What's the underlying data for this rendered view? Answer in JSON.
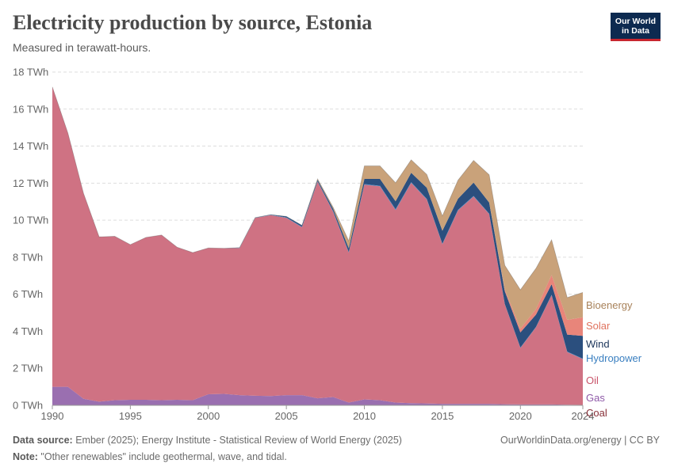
{
  "header": {
    "title": "Electricity production by source, Estonia",
    "subtitle": "Measured in terawatt-hours."
  },
  "logo": {
    "line1": "Our World",
    "line2": "in Data"
  },
  "footer": {
    "source_label": "Data source:",
    "source_text": " Ember (2025); Energy Institute - Statistical Review of World Energy (2025)",
    "note_label": "Note:",
    "note_text": " \"Other renewables\" include geothermal, wave, and tidal.",
    "credit": "OurWorldinData.org/energy | CC BY"
  },
  "chart_data": {
    "type": "area",
    "stacked": true,
    "title": "Electricity production by source, Estonia",
    "subtitle": "Measured in terawatt-hours.",
    "x": [
      1990,
      1991,
      1992,
      1993,
      1994,
      1995,
      1996,
      1997,
      1998,
      1999,
      2000,
      2001,
      2002,
      2003,
      2004,
      2005,
      2006,
      2007,
      2008,
      2009,
      2010,
      2011,
      2012,
      2013,
      2014,
      2015,
      2016,
      2017,
      2018,
      2019,
      2020,
      2021,
      2022,
      2023,
      2024
    ],
    "x_ticks": [
      1990,
      1995,
      2000,
      2005,
      2010,
      2015,
      2020,
      2024
    ],
    "x_tick_labels": [
      "1990",
      "1995",
      "2000",
      "2005",
      "2010",
      "2015",
      "2020",
      "2024"
    ],
    "xlim": [
      1990,
      2024
    ],
    "ylim": [
      0,
      18
    ],
    "y_ticks": [
      0,
      2,
      4,
      6,
      8,
      10,
      12,
      14,
      16,
      18
    ],
    "y_tick_labels": [
      "0 TWh",
      "2 TWh",
      "4 TWh",
      "6 TWh",
      "8 TWh",
      "10 TWh",
      "12 TWh",
      "14 TWh",
      "16 TWh",
      "18 TWh"
    ],
    "grid": true,
    "legend_position": "right-inline",
    "series": [
      {
        "name": "Coal",
        "color": "#883039",
        "values": [
          0,
          0,
          0,
          0,
          0,
          0,
          0,
          0,
          0,
          0,
          0,
          0,
          0,
          0,
          0,
          0,
          0,
          0,
          0,
          0,
          0,
          0,
          0,
          0,
          0,
          0,
          0,
          0,
          0,
          0,
          0,
          0,
          0,
          0,
          0
        ]
      },
      {
        "name": "Gas",
        "color": "#9a6fb0",
        "values": [
          1.0,
          1.0,
          0.35,
          0.2,
          0.28,
          0.3,
          0.3,
          0.28,
          0.3,
          0.28,
          0.6,
          0.62,
          0.55,
          0.52,
          0.5,
          0.55,
          0.55,
          0.38,
          0.45,
          0.15,
          0.32,
          0.28,
          0.15,
          0.12,
          0.1,
          0.08,
          0.08,
          0.08,
          0.08,
          0.06,
          0.05,
          0.05,
          0.05,
          0.03,
          0.02
        ]
      },
      {
        "name": "Oil",
        "color": "#cf7283",
        "values": [
          16.2,
          13.7,
          11.1,
          8.9,
          8.85,
          8.38,
          8.77,
          8.92,
          8.24,
          7.97,
          7.9,
          7.86,
          7.95,
          9.6,
          9.77,
          9.58,
          9.07,
          11.7,
          10.0,
          8.1,
          11.6,
          11.55,
          10.4,
          11.9,
          11.02,
          8.62,
          10.45,
          11.2,
          10.25,
          5.4,
          3.05,
          4.17,
          5.9,
          2.85,
          2.48
        ]
      },
      {
        "name": "Hydropower",
        "color": "#3c87c6",
        "values": [
          0,
          0,
          0,
          0,
          0,
          0,
          0,
          0,
          0,
          0,
          0,
          0,
          0.01,
          0.01,
          0.02,
          0.02,
          0.02,
          0.02,
          0.03,
          0.03,
          0.03,
          0.03,
          0.04,
          0.03,
          0.03,
          0.03,
          0.03,
          0.03,
          0.02,
          0.02,
          0.02,
          0.02,
          0.02,
          0.02,
          0.02
        ]
      },
      {
        "name": "Wind",
        "color": "#2b4f7e",
        "values": [
          0,
          0,
          0,
          0,
          0,
          0,
          0,
          0,
          0,
          0,
          0,
          0,
          0.01,
          0.01,
          0.01,
          0.05,
          0.08,
          0.08,
          0.13,
          0.2,
          0.28,
          0.37,
          0.43,
          0.51,
          0.6,
          0.7,
          0.6,
          0.72,
          0.6,
          0.68,
          0.82,
          0.66,
          0.57,
          0.92,
          1.23
        ]
      },
      {
        "name": "Solar",
        "color": "#e8857a",
        "values": [
          0,
          0,
          0,
          0,
          0,
          0,
          0,
          0,
          0,
          0,
          0,
          0,
          0,
          0,
          0,
          0,
          0,
          0,
          0,
          0,
          0,
          0,
          0,
          0,
          0,
          0,
          0,
          0,
          0,
          0.1,
          0.2,
          0.3,
          0.5,
          0.8,
          1.0
        ]
      },
      {
        "name": "Bioenergy",
        "color": "#c9a27a",
        "values": [
          0,
          0,
          0,
          0,
          0,
          0,
          0,
          0,
          0,
          0,
          0,
          0,
          0,
          0,
          0,
          0,
          0,
          0.05,
          0.08,
          0.4,
          0.7,
          0.7,
          1.0,
          0.7,
          0.72,
          0.8,
          1.0,
          1.2,
          1.5,
          1.3,
          2.1,
          2.2,
          1.9,
          1.2,
          1.35
        ]
      }
    ],
    "legend_order": [
      "Bioenergy",
      "Solar",
      "Wind",
      "Hydropower",
      "Oil",
      "Gas",
      "Coal"
    ]
  }
}
